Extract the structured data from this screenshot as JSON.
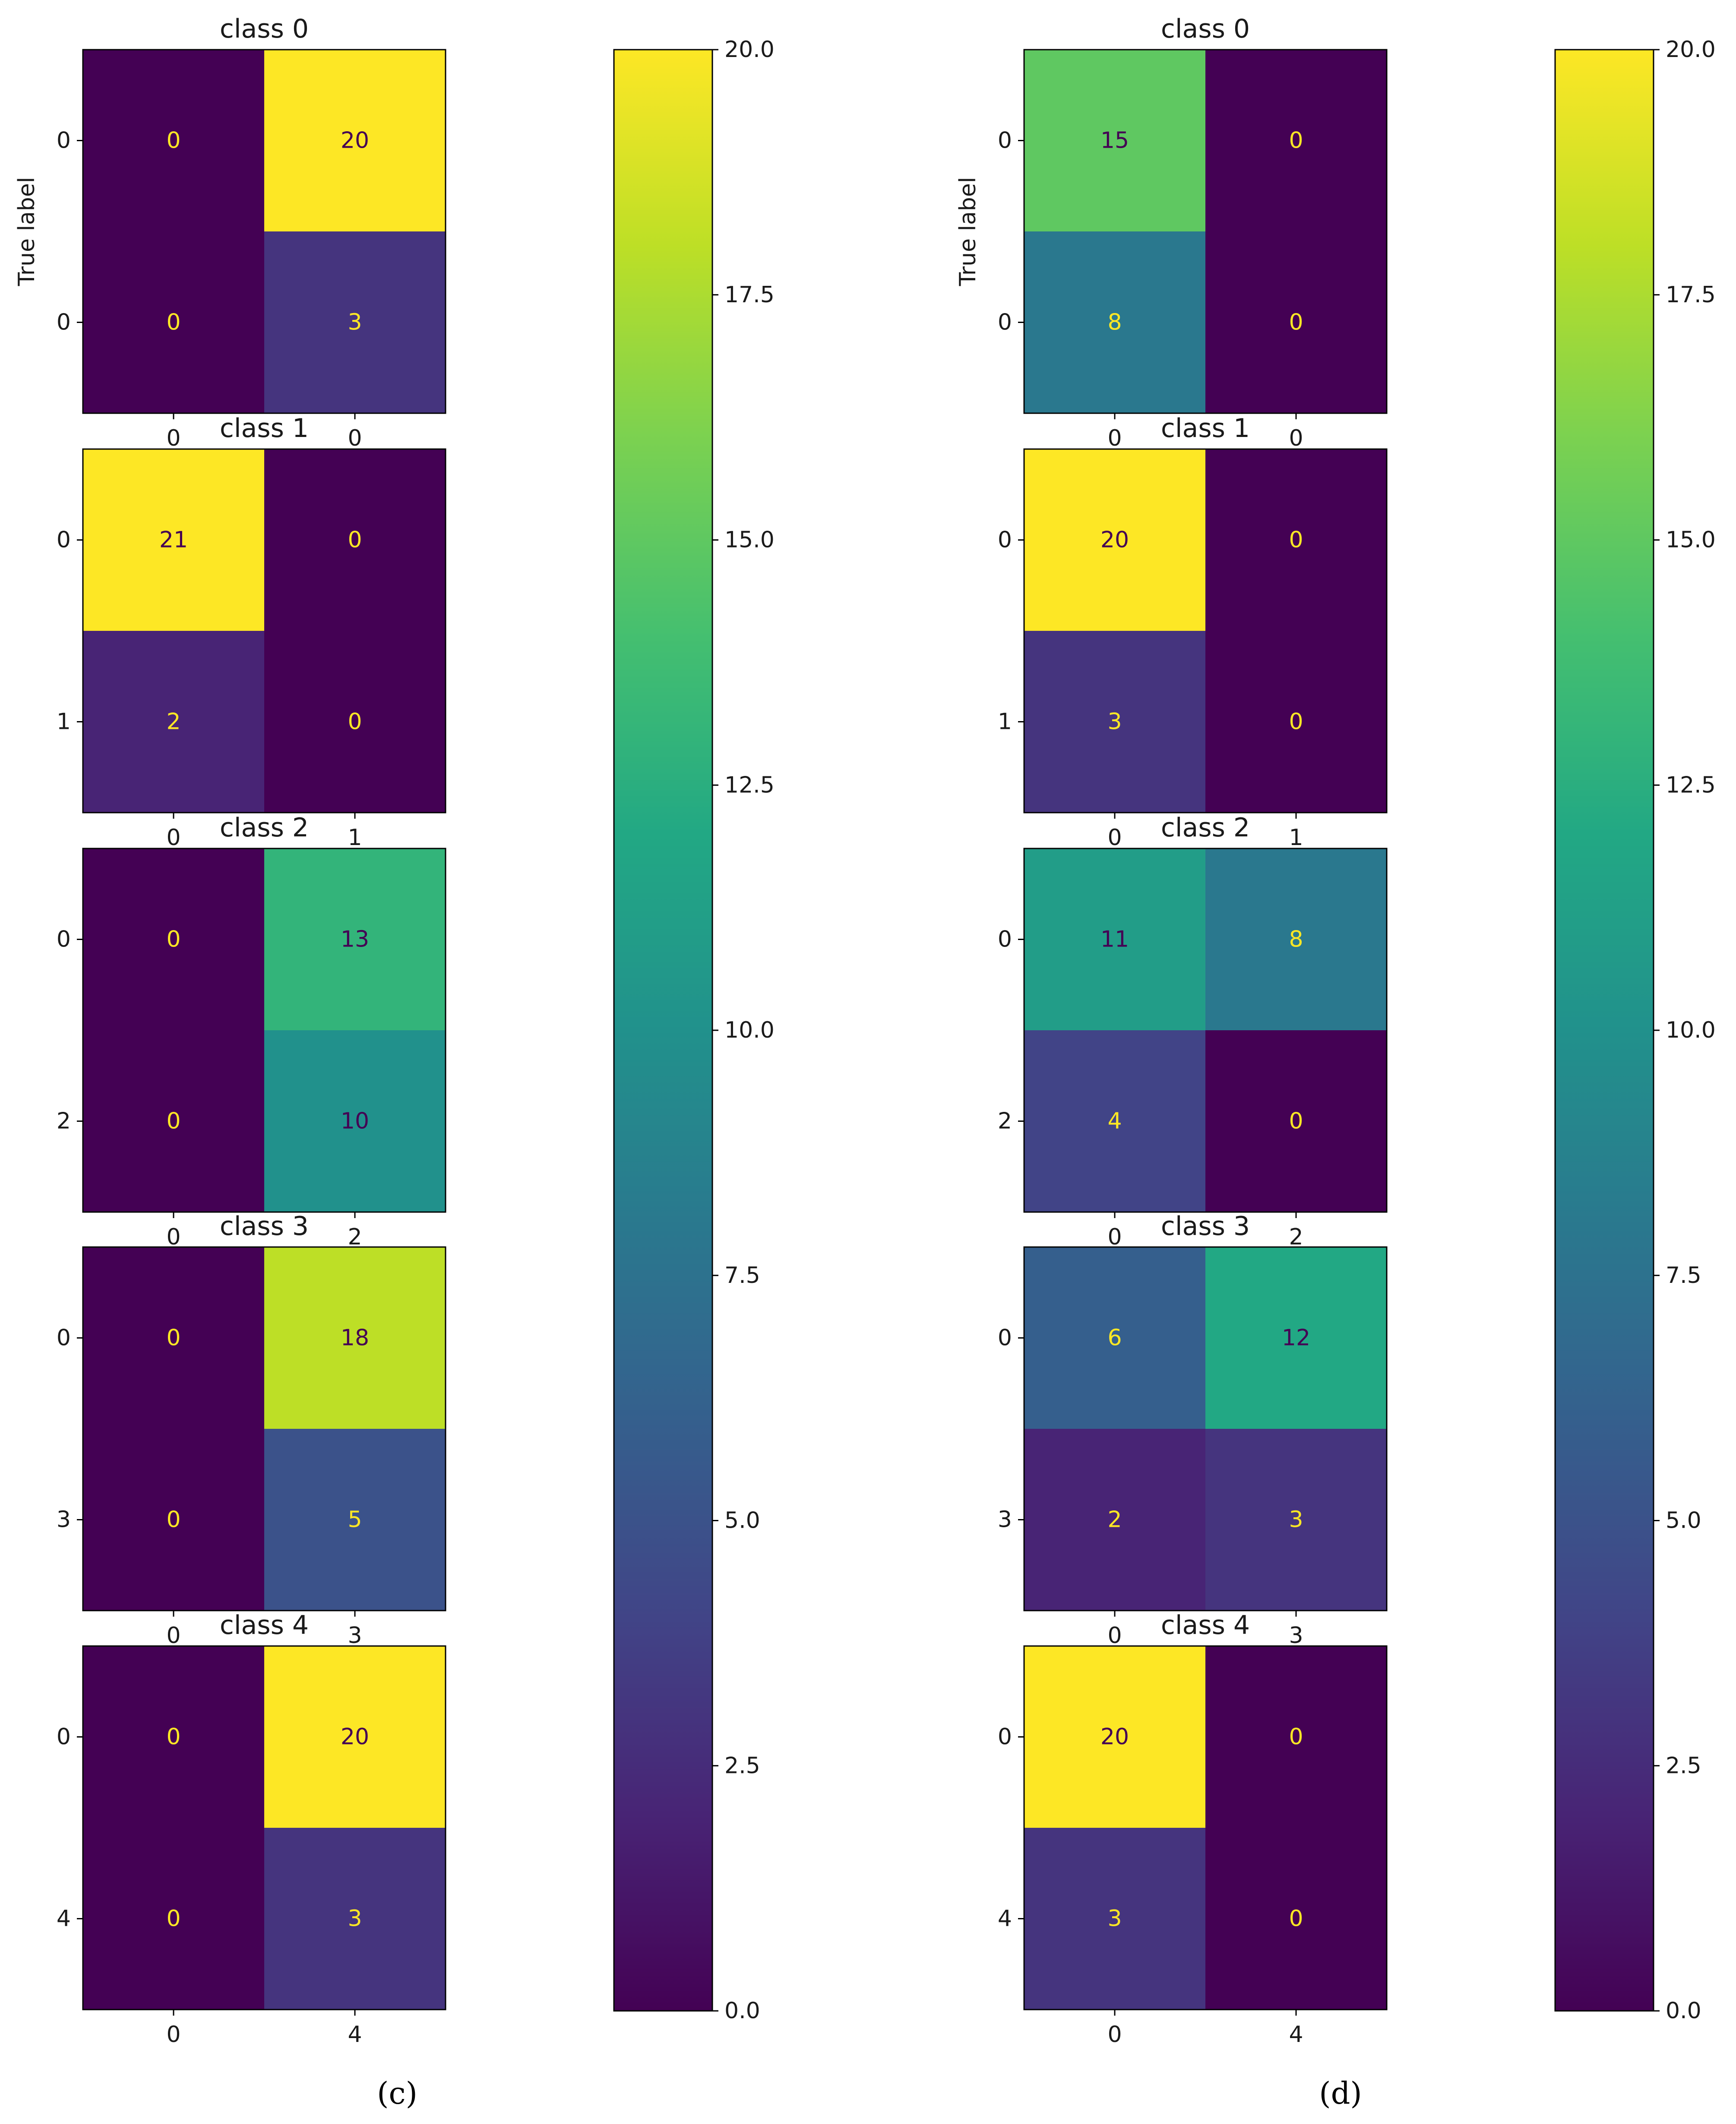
{
  "chart_data": [
    {
      "type": "heatmap",
      "panel_label": "c",
      "ylabel": "True label",
      "colorbar": {
        "vmin": 0,
        "vmax": 20,
        "ticks": [
          0,
          2.5,
          5,
          7.5,
          10,
          12.5,
          15,
          17.5,
          20
        ],
        "tick_labels": [
          "0.0",
          "2.5",
          "5.0",
          "7.5",
          "10.0",
          "12.5",
          "15.0",
          "17.5",
          "20.0"
        ]
      },
      "matrices": [
        {
          "title": "class 0",
          "row_labels": [
            "0",
            "0"
          ],
          "col_labels": [
            "0",
            "0"
          ],
          "values": [
            [
              0,
              20
            ],
            [
              0,
              3
            ]
          ]
        },
        {
          "title": "class 1",
          "row_labels": [
            "0",
            "1"
          ],
          "col_labels": [
            "0",
            "1"
          ],
          "values": [
            [
              21,
              0
            ],
            [
              2,
              0
            ]
          ]
        },
        {
          "title": "class 2",
          "row_labels": [
            "0",
            "2"
          ],
          "col_labels": [
            "0",
            "2"
          ],
          "values": [
            [
              0,
              13
            ],
            [
              0,
              10
            ]
          ]
        },
        {
          "title": "class 3",
          "row_labels": [
            "0",
            "3"
          ],
          "col_labels": [
            "0",
            "3"
          ],
          "values": [
            [
              0,
              18
            ],
            [
              0,
              5
            ]
          ]
        },
        {
          "title": "class 4",
          "row_labels": [
            "0",
            "4"
          ],
          "col_labels": [
            "0",
            "4"
          ],
          "values": [
            [
              0,
              20
            ],
            [
              0,
              3
            ]
          ]
        }
      ]
    },
    {
      "type": "heatmap",
      "panel_label": "d",
      "ylabel": "True label",
      "colorbar": {
        "vmin": 0,
        "vmax": 20,
        "ticks": [
          0,
          2.5,
          5,
          7.5,
          10,
          12.5,
          15,
          17.5,
          20
        ],
        "tick_labels": [
          "0.0",
          "2.5",
          "5.0",
          "7.5",
          "10.0",
          "12.5",
          "15.0",
          "17.5",
          "20.0"
        ]
      },
      "matrices": [
        {
          "title": "class 0",
          "row_labels": [
            "0",
            "0"
          ],
          "col_labels": [
            "0",
            "0"
          ],
          "values": [
            [
              15,
              0
            ],
            [
              8,
              0
            ]
          ]
        },
        {
          "title": "class 1",
          "row_labels": [
            "0",
            "1"
          ],
          "col_labels": [
            "0",
            "1"
          ],
          "values": [
            [
              20,
              0
            ],
            [
              3,
              0
            ]
          ]
        },
        {
          "title": "class 2",
          "row_labels": [
            "0",
            "2"
          ],
          "col_labels": [
            "0",
            "2"
          ],
          "values": [
            [
              11,
              8
            ],
            [
              4,
              0
            ]
          ]
        },
        {
          "title": "class 3",
          "row_labels": [
            "0",
            "3"
          ],
          "col_labels": [
            "0",
            "3"
          ],
          "values": [
            [
              6,
              12
            ],
            [
              2,
              3
            ]
          ]
        },
        {
          "title": "class 4",
          "row_labels": [
            "0",
            "4"
          ],
          "col_labels": [
            "0",
            "4"
          ],
          "values": [
            [
              20,
              0
            ],
            [
              3,
              0
            ]
          ]
        }
      ]
    }
  ]
}
